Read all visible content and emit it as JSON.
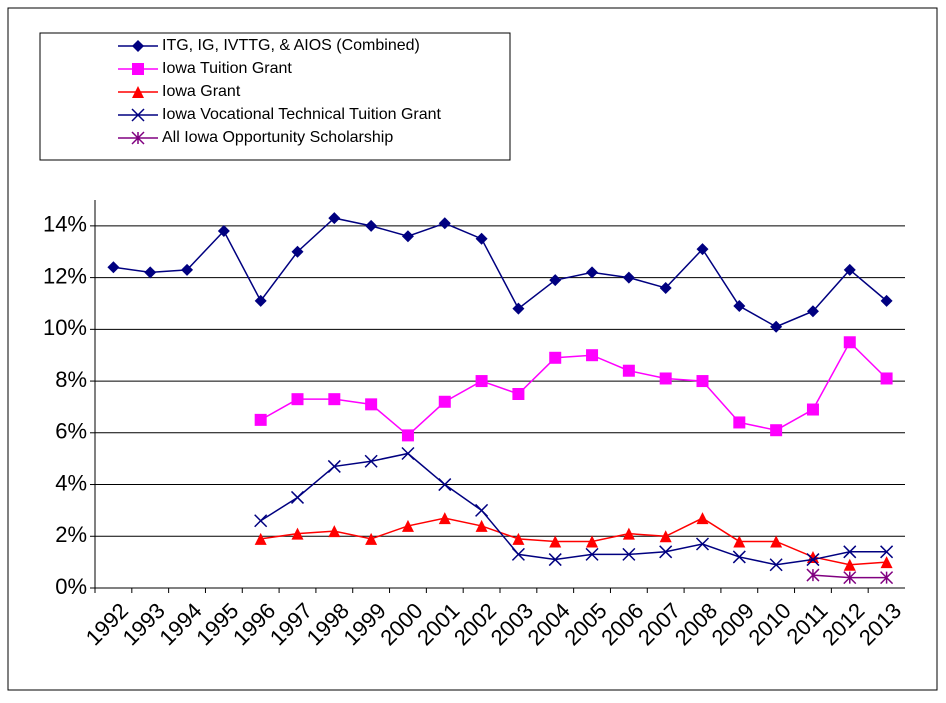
{
  "chart_data": {
    "type": "line",
    "categories": [
      "1992",
      "1993",
      "1994",
      "1995",
      "1996",
      "1997",
      "1998",
      "1999",
      "2000",
      "2001",
      "2002",
      "2003",
      "2004",
      "2005",
      "2006",
      "2007",
      "2008",
      "2009",
      "2010",
      "2011",
      "2012",
      "2013"
    ],
    "series": [
      {
        "name": "ITG, IG, IVTTG, & AIOS (Combined)",
        "color": "#000080",
        "marker": "diamond",
        "values": [
          12.4,
          12.2,
          12.3,
          13.8,
          11.1,
          13.0,
          14.3,
          14.0,
          13.6,
          14.1,
          13.5,
          10.8,
          11.9,
          12.2,
          12.0,
          11.6,
          13.1,
          10.9,
          10.1,
          10.7,
          12.3,
          11.1
        ]
      },
      {
        "name": "Iowa Tuition Grant",
        "color": "#ff00ff",
        "marker": "square",
        "values": [
          null,
          null,
          null,
          null,
          6.5,
          7.3,
          7.3,
          7.1,
          5.9,
          7.2,
          8.0,
          7.5,
          8.9,
          9.0,
          8.4,
          8.1,
          8.0,
          6.4,
          6.1,
          6.9,
          9.5,
          8.1
        ]
      },
      {
        "name": "Iowa Grant",
        "color": "#ff0000",
        "marker": "triangle",
        "values": [
          null,
          null,
          null,
          null,
          1.9,
          2.1,
          2.2,
          1.9,
          2.4,
          2.7,
          2.4,
          1.9,
          1.8,
          1.8,
          2.1,
          2.0,
          2.7,
          1.8,
          1.8,
          1.2,
          0.9,
          1.0
        ]
      },
      {
        "name": "Iowa Vocational Technical Tuition Grant",
        "color": "#000080",
        "marker": "x",
        "values": [
          null,
          null,
          null,
          null,
          2.6,
          3.5,
          4.7,
          4.9,
          5.2,
          4.0,
          3.0,
          1.3,
          1.1,
          1.3,
          1.3,
          1.4,
          1.7,
          1.2,
          0.9,
          1.1,
          1.4,
          1.4
        ]
      },
      {
        "name": "All Iowa Opportunity Scholarship",
        "color": "#800080",
        "marker": "asterisk",
        "values": [
          null,
          null,
          null,
          null,
          null,
          null,
          null,
          null,
          null,
          null,
          null,
          null,
          null,
          null,
          null,
          null,
          null,
          null,
          null,
          0.5,
          0.4,
          0.4
        ]
      }
    ],
    "ylim": [
      0,
      15
    ],
    "yticks": [
      {
        "value": 0,
        "label": "0%"
      },
      {
        "value": 2,
        "label": "2%"
      },
      {
        "value": 4,
        "label": "4%"
      },
      {
        "value": 6,
        "label": "6%"
      },
      {
        "value": 8,
        "label": "8%"
      },
      {
        "value": 10,
        "label": "10%"
      },
      {
        "value": 12,
        "label": "12%"
      },
      {
        "value": 14,
        "label": "14%"
      }
    ],
    "grid": true,
    "legend": "top-left"
  }
}
